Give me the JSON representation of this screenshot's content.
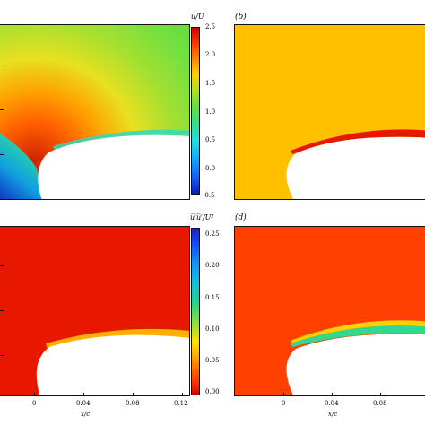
{
  "colorbar_top": {
    "title": "u̅/U",
    "ticks": [
      "2.5",
      "2.0",
      "1.5",
      "1.0",
      "0.5",
      "0.0",
      "-0.5"
    ]
  },
  "colorbar_bottom": {
    "title": "u̅′u̅′/U²",
    "ticks": [
      "0.25",
      "0.20",
      "0.15",
      "0.10",
      "0.05",
      "0.00"
    ]
  },
  "panels": {
    "b": {
      "label": "(b)"
    },
    "d": {
      "label": "(d)"
    }
  },
  "axis_left_bottom": {
    "ticks": [
      "0",
      "0.04",
      "0.08",
      "0.12"
    ],
    "title": "x/c"
  },
  "axis_right_bottom": {
    "ticks": [
      "0",
      "0.04",
      "0.08"
    ],
    "title": "x/c"
  },
  "colors": {
    "panel_b_background": "#ffc000",
    "panel_c_background": "#e81800",
    "panel_d_background": "#ff4000",
    "body": "#ffffff"
  }
}
